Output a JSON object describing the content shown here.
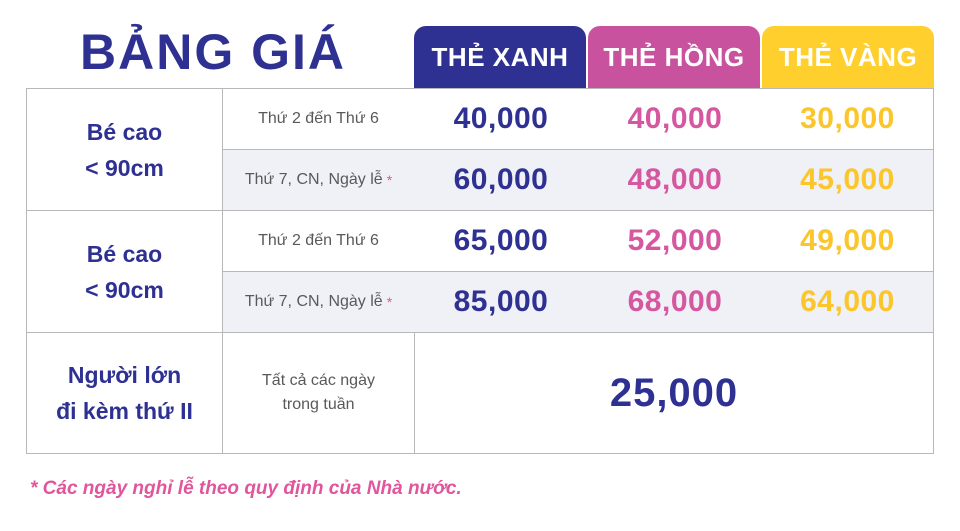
{
  "title": "BẢNG GIÁ",
  "headers": {
    "blue": "THẺ XANH",
    "pink": "THẺ HỒNG",
    "gold": "THẺ VÀNG"
  },
  "groups": [
    {
      "label_line1": "Bé cao",
      "label_line2": "< 90cm",
      "rows": [
        {
          "day": "Thứ 2 đến Thứ 6",
          "star": "",
          "blue": "40,000",
          "pink": "40,000",
          "gold": "30,000"
        },
        {
          "day": "Thứ 7, CN, Ngày lễ",
          "star": "*",
          "blue": "60,000",
          "pink": "48,000",
          "gold": "45,000"
        }
      ]
    },
    {
      "label_line1": "Bé cao",
      "label_line2": "< 90cm",
      "rows": [
        {
          "day": "Thứ 2 đến Thứ 6",
          "star": "",
          "blue": "65,000",
          "pink": "52,000",
          "gold": "49,000"
        },
        {
          "day": "Thứ 7, CN, Ngày lễ",
          "star": "*",
          "blue": "85,000",
          "pink": "68,000",
          "gold": "64,000"
        }
      ]
    }
  ],
  "adult": {
    "label_line1": "Người lớn",
    "label_line2": "đi kèm thứ II",
    "day_line1": "Tất cả các ngày",
    "day_line2": "trong tuần",
    "price": "25,000"
  },
  "footnote": "* Các ngày nghỉ lễ theo quy định của Nhà nước.",
  "colors": {
    "navy": "#2e3192",
    "pink": "#c9529f",
    "gold": "#ffcf2e"
  }
}
